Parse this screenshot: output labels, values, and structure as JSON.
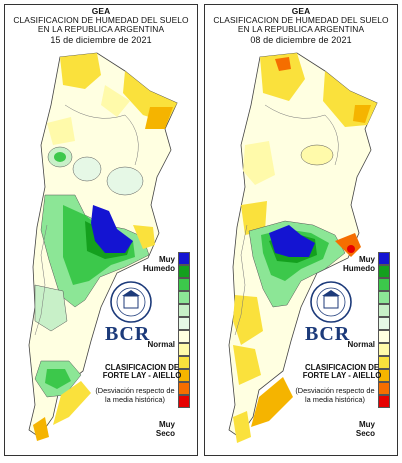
{
  "header": {
    "line1": "GEA",
    "line2": "CLASIFICACION DE HUMEDAD DEL SUELO",
    "line3": "EN LA REPUBLICA ARGENTINA"
  },
  "panels": [
    {
      "date": "15 de diciembre de 2021"
    },
    {
      "date": "08 de diciembre de 2021"
    }
  ],
  "legend": {
    "top_label_1": "Muy",
    "top_label_2": "Humedo",
    "mid_label": "Normal",
    "bottom_label_1": "Muy",
    "bottom_label_2": "Seco",
    "colors": [
      "#1414d2",
      "#14a01e",
      "#3cc84b",
      "#8ce696",
      "#c8f0c8",
      "#e6f8e6",
      "#ffffe1",
      "#fffaaa",
      "#fae13c",
      "#f5b400",
      "#f56e00",
      "#e60000"
    ]
  },
  "logo": {
    "seal_text": "BOLSA DE COMERCIO DE ROSARIO",
    "brand": "BCR"
  },
  "classification": {
    "line1": "CLASIFICACION DE",
    "line2": "FORTE LAY - AIELLO",
    "note1": "(Desviación respecto de",
    "note2": "la media histórica)"
  }
}
